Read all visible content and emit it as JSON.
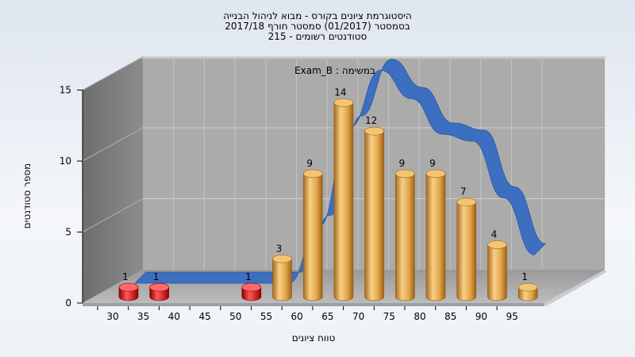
{
  "title_lines": [
    "היסטוגרמת ציונים בקורס - מבוא לניהול הבנייה",
    "בסמסטר  (01/2017)  סמסטר חורף 2017/18",
    "215 - סטודנטים רשומים"
  ],
  "colors": {
    "failing": "#d81010",
    "passing": "#e0a040",
    "curve": "#3c6fc0"
  },
  "chart_data": {
    "type": "bar",
    "title": "היסטוגרמת ציונים בקורס - מבוא לניהול הבנייה",
    "annotation": "Exam_B : במשימה",
    "xlabel": "טווח ציונים",
    "ylabel": "מספר סטודנטים",
    "ylim": [
      0,
      15
    ],
    "yticks": [
      0,
      5,
      10,
      15
    ],
    "categories": [
      "30",
      "35",
      "40",
      "45",
      "50",
      "55",
      "60",
      "65",
      "70",
      "75",
      "80",
      "85",
      "90",
      "95"
    ],
    "values": [
      1,
      1,
      0,
      0,
      1,
      3,
      9,
      14,
      12,
      9,
      9,
      7,
      4,
      1
    ],
    "failing_threshold": 55,
    "curve": [
      0,
      0,
      0,
      0,
      0,
      0,
      4,
      11,
      15,
      13,
      10.5,
      10,
      6,
      2
    ],
    "grid": true,
    "legend": "none"
  }
}
